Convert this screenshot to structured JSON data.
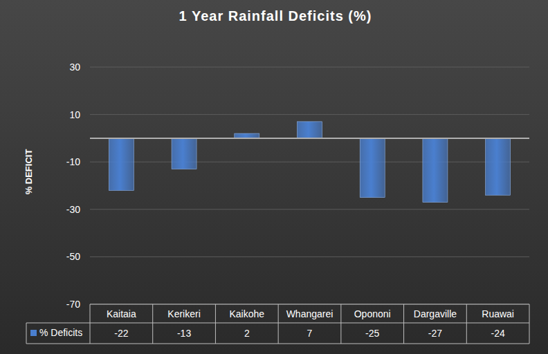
{
  "chart_data": {
    "type": "bar",
    "title": "1 Year Rainfall Deficits (%)",
    "y_label": "% DEFICIT",
    "categories": [
      "Kaitaia",
      "Kerikeri",
      "Kaikohe",
      "Whangarei",
      "Opononi",
      "Dargaville",
      "Ruawai"
    ],
    "series": [
      {
        "name": "% Deficits",
        "color": "#4a7fcf",
        "values": [
          -22,
          -13,
          2,
          7,
          -25,
          -27,
          -24
        ]
      }
    ],
    "ylim": [
      -70,
      30
    ],
    "yticks": [
      -70,
      -50,
      -30,
      -10,
      10,
      30
    ],
    "grid": true
  }
}
